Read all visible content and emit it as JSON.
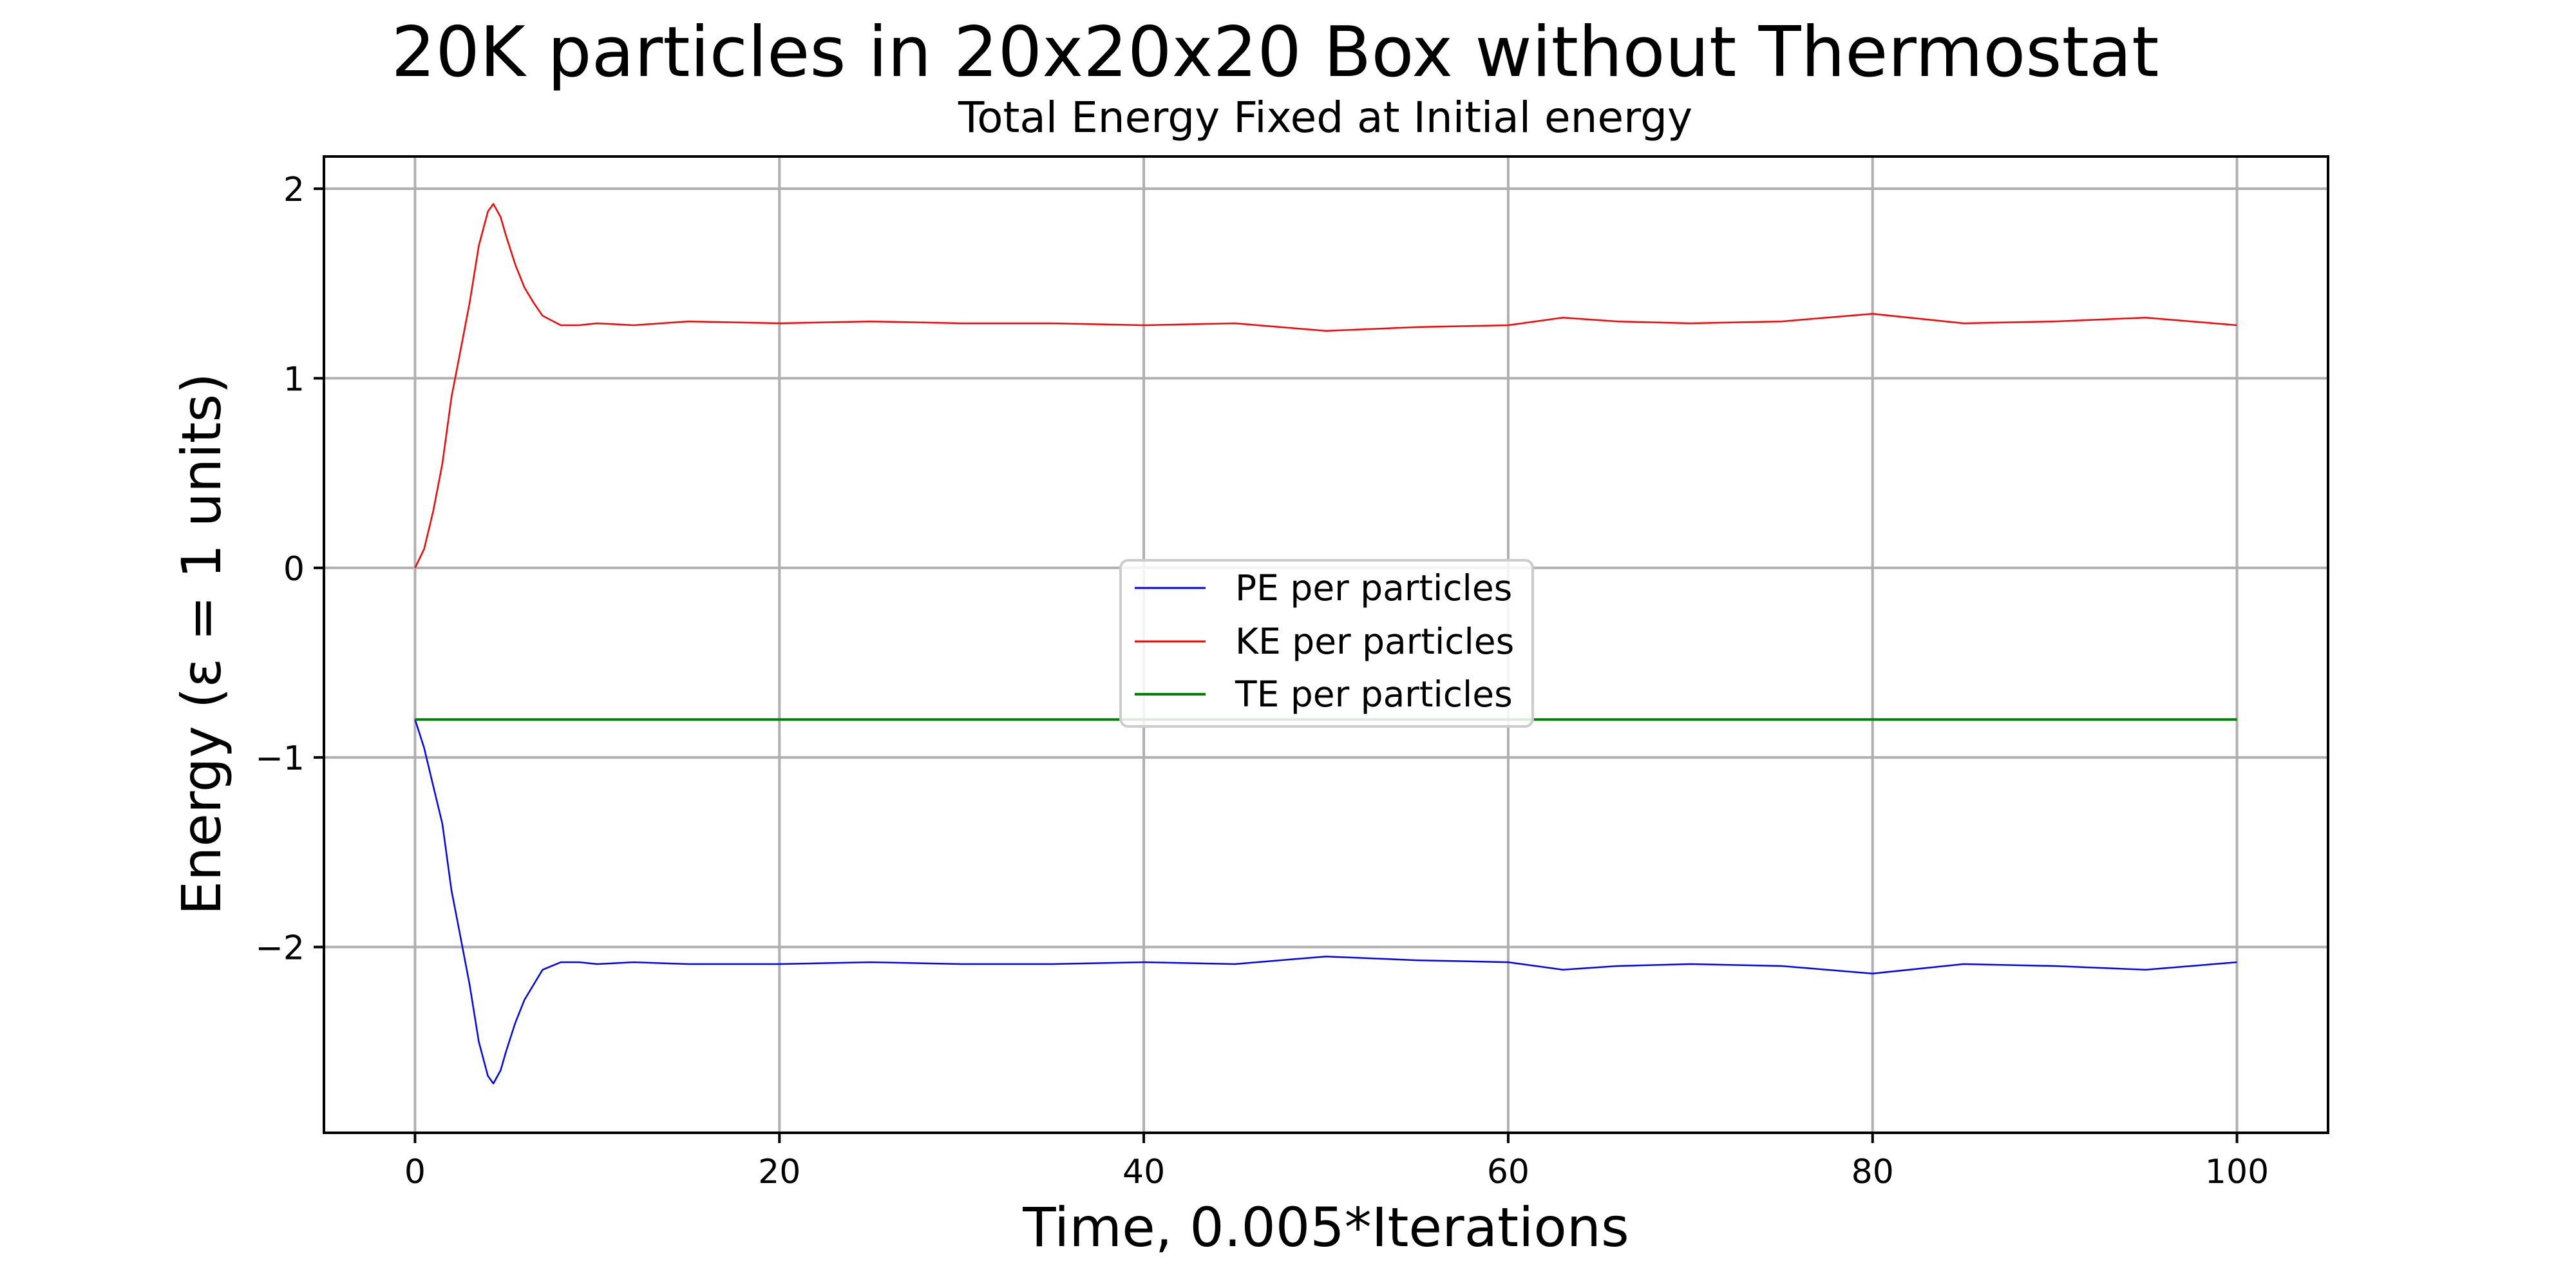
{
  "chart_data": {
    "type": "line",
    "title": "20K particles in 20x20x20 Box without Thermostat",
    "subtitle": "Total Energy Fixed at Initial energy",
    "xlabel": "Time, 0.005*Iterations",
    "ylabel": "Energy (ε = 1 units)",
    "xlim": [
      -5,
      105
    ],
    "ylim": [
      -2.98,
      2.17
    ],
    "xticks": [
      0,
      20,
      40,
      60,
      80,
      100
    ],
    "xtick_labels": [
      "0",
      "20",
      "40",
      "60",
      "80",
      "100"
    ],
    "yticks": [
      -2,
      -1,
      0,
      1,
      2
    ],
    "ytick_labels": [
      "−2",
      "−1",
      "0",
      "1",
      "2"
    ],
    "grid": true,
    "legend_position": "center",
    "colors": {
      "pe": "#0000ff",
      "ke": "#ff0000",
      "te": "#008000",
      "grid": "#b0b0b0"
    },
    "series": [
      {
        "name": "PE per particles",
        "x": [
          0,
          0.5,
          1,
          1.5,
          2,
          2.5,
          3,
          3.5,
          4,
          4.3,
          4.7,
          5,
          5.5,
          6,
          6.5,
          7,
          8,
          9,
          10,
          12,
          15,
          20,
          25,
          30,
          35,
          40,
          45,
          50,
          55,
          60,
          63,
          66,
          70,
          75,
          80,
          85,
          90,
          95,
          100
        ],
        "values": [
          -0.8,
          -0.95,
          -1.15,
          -1.35,
          -1.7,
          -1.95,
          -2.2,
          -2.5,
          -2.68,
          -2.72,
          -2.65,
          -2.55,
          -2.4,
          -2.28,
          -2.2,
          -2.12,
          -2.08,
          -2.08,
          -2.09,
          -2.08,
          -2.09,
          -2.09,
          -2.08,
          -2.09,
          -2.09,
          -2.08,
          -2.09,
          -2.05,
          -2.07,
          -2.08,
          -2.12,
          -2.1,
          -2.09,
          -2.1,
          -2.14,
          -2.09,
          -2.1,
          -2.12,
          -2.08
        ]
      },
      {
        "name": "KE per particles",
        "x": [
          0,
          0.5,
          1,
          1.5,
          2,
          2.5,
          3,
          3.5,
          4,
          4.3,
          4.7,
          5,
          5.5,
          6,
          6.5,
          7,
          8,
          9,
          10,
          12,
          15,
          20,
          25,
          30,
          35,
          40,
          45,
          50,
          55,
          60,
          63,
          66,
          70,
          75,
          80,
          85,
          90,
          95,
          100
        ],
        "values": [
          0,
          0.1,
          0.3,
          0.55,
          0.9,
          1.15,
          1.4,
          1.7,
          1.88,
          1.92,
          1.85,
          1.75,
          1.6,
          1.48,
          1.4,
          1.33,
          1.28,
          1.28,
          1.29,
          1.28,
          1.3,
          1.29,
          1.3,
          1.29,
          1.29,
          1.28,
          1.29,
          1.25,
          1.27,
          1.28,
          1.32,
          1.3,
          1.29,
          1.3,
          1.34,
          1.29,
          1.3,
          1.32,
          1.28
        ]
      },
      {
        "name": "TE per particles",
        "x": [
          0,
          100
        ],
        "values": [
          -0.8,
          -0.8
        ]
      }
    ]
  }
}
